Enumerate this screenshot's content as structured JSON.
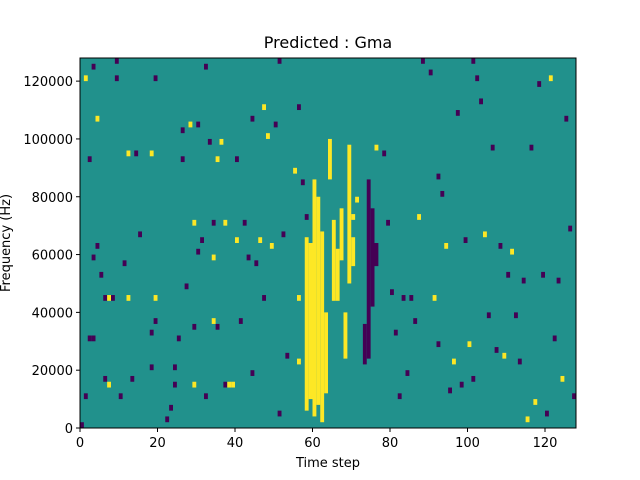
{
  "chart_data": {
    "type": "heatmap",
    "title": "Predicted : Gma",
    "xlabel": "Time step",
    "ylabel": "Frequency (Hz)",
    "xlim": [
      0,
      128
    ],
    "ylim": [
      0,
      128000
    ],
    "x_ticks": [
      0,
      20,
      40,
      60,
      80,
      100,
      120
    ],
    "y_ticks": [
      0,
      20000,
      40000,
      60000,
      80000,
      100000,
      120000
    ],
    "grid": false,
    "legend": "none",
    "colors": {
      "background": "#21918c",
      "high": "#fde725",
      "low": "#440154"
    },
    "band_hz": 2000,
    "events": [
      {
        "t": 0,
        "f": 0,
        "level": "low"
      },
      {
        "t": 1,
        "f": 10000,
        "level": "low"
      },
      {
        "t": 2,
        "f": 30000,
        "level": "low"
      },
      {
        "t": 3,
        "f": 30000,
        "level": "low"
      },
      {
        "t": 1,
        "f": 120000,
        "level": "high"
      },
      {
        "t": 3,
        "f": 124000,
        "level": "low"
      },
      {
        "t": 4,
        "f": 106000,
        "level": "high"
      },
      {
        "t": 2,
        "f": 92000,
        "level": "low"
      },
      {
        "t": 3,
        "f": 58000,
        "level": "low"
      },
      {
        "t": 4,
        "f": 62000,
        "level": "low"
      },
      {
        "t": 5,
        "f": 52000,
        "level": "low"
      },
      {
        "t": 6,
        "f": 44000,
        "level": "low"
      },
      {
        "t": 6,
        "f": 16000,
        "level": "low"
      },
      {
        "t": 7,
        "f": 14000,
        "level": "high"
      },
      {
        "t": 7,
        "f": 44000,
        "level": "high"
      },
      {
        "t": 8,
        "f": 44000,
        "level": "low"
      },
      {
        "t": 9,
        "f": 120000,
        "level": "low"
      },
      {
        "t": 9,
        "f": 126000,
        "level": "low"
      },
      {
        "t": 10,
        "f": 10000,
        "level": "low"
      },
      {
        "t": 11,
        "f": 56000,
        "level": "low"
      },
      {
        "t": 12,
        "f": 44000,
        "level": "high"
      },
      {
        "t": 12,
        "f": 94000,
        "level": "high"
      },
      {
        "t": 13,
        "f": 16000,
        "level": "low"
      },
      {
        "t": 14,
        "f": 94000,
        "level": "low"
      },
      {
        "t": 15,
        "f": 66000,
        "level": "low"
      },
      {
        "t": 18,
        "f": 20000,
        "level": "low"
      },
      {
        "t": 18,
        "f": 32000,
        "level": "low"
      },
      {
        "t": 18,
        "f": 94000,
        "level": "high"
      },
      {
        "t": 19,
        "f": 120000,
        "level": "low"
      },
      {
        "t": 19,
        "f": 36000,
        "level": "low"
      },
      {
        "t": 19,
        "f": 44000,
        "level": "high"
      },
      {
        "t": 22,
        "f": 2000,
        "level": "low"
      },
      {
        "t": 23,
        "f": 6000,
        "level": "low"
      },
      {
        "t": 24,
        "f": 20000,
        "level": "low"
      },
      {
        "t": 24,
        "f": 14000,
        "level": "low"
      },
      {
        "t": 25,
        "f": 30000,
        "level": "low"
      },
      {
        "t": 26,
        "f": 92000,
        "level": "low"
      },
      {
        "t": 26,
        "f": 102000,
        "level": "low"
      },
      {
        "t": 27,
        "f": 48000,
        "level": "low"
      },
      {
        "t": 28,
        "f": 104000,
        "level": "high"
      },
      {
        "t": 29,
        "f": 70000,
        "level": "high"
      },
      {
        "t": 29,
        "f": 34000,
        "level": "low"
      },
      {
        "t": 29,
        "f": 14000,
        "level": "high"
      },
      {
        "t": 30,
        "f": 60000,
        "level": "low"
      },
      {
        "t": 30,
        "f": 104000,
        "level": "low"
      },
      {
        "t": 31,
        "f": 64000,
        "level": "low"
      },
      {
        "t": 32,
        "f": 10000,
        "level": "low"
      },
      {
        "t": 32,
        "f": 124000,
        "level": "low"
      },
      {
        "t": 33,
        "f": 98000,
        "level": "low"
      },
      {
        "t": 34,
        "f": 70000,
        "level": "low"
      },
      {
        "t": 34,
        "f": 58000,
        "level": "high"
      },
      {
        "t": 34,
        "f": 36000,
        "level": "high"
      },
      {
        "t": 35,
        "f": 34000,
        "level": "low"
      },
      {
        "t": 35,
        "f": 92000,
        "level": "high"
      },
      {
        "t": 36,
        "f": 98000,
        "level": "high"
      },
      {
        "t": 37,
        "f": 14000,
        "level": "low"
      },
      {
        "t": 38,
        "f": 14000,
        "level": "high"
      },
      {
        "t": 39,
        "f": 14000,
        "level": "high"
      },
      {
        "t": 37,
        "f": 70000,
        "level": "high"
      },
      {
        "t": 40,
        "f": 64000,
        "level": "high"
      },
      {
        "t": 40,
        "f": 92000,
        "level": "low"
      },
      {
        "t": 41,
        "f": 36000,
        "level": "low"
      },
      {
        "t": 42,
        "f": 70000,
        "level": "low"
      },
      {
        "t": 43,
        "f": 58000,
        "level": "low"
      },
      {
        "t": 44,
        "f": 18000,
        "level": "low"
      },
      {
        "t": 44,
        "f": 106000,
        "level": "low"
      },
      {
        "t": 45,
        "f": 56000,
        "level": "low"
      },
      {
        "t": 46,
        "f": 64000,
        "level": "high"
      },
      {
        "t": 47,
        "f": 44000,
        "level": "low"
      },
      {
        "t": 47,
        "f": 110000,
        "level": "high"
      },
      {
        "t": 48,
        "f": 100000,
        "level": "high"
      },
      {
        "t": 49,
        "f": 62000,
        "level": "high"
      },
      {
        "t": 50,
        "f": 104000,
        "level": "low"
      },
      {
        "t": 51,
        "f": 126000,
        "level": "low"
      },
      {
        "t": 51,
        "f": 4000,
        "level": "low"
      },
      {
        "t": 52,
        "f": 66000,
        "level": "low"
      },
      {
        "t": 53,
        "f": 24000,
        "level": "low"
      },
      {
        "t": 55,
        "f": 88000,
        "level": "high"
      },
      {
        "t": 56,
        "f": 110000,
        "level": "low"
      },
      {
        "t": 56,
        "f": 44000,
        "level": "high"
      },
      {
        "t": 56,
        "f": 22000,
        "level": "high"
      },
      {
        "t": 57,
        "f": 84000,
        "level": "low"
      },
      {
        "t": 58,
        "f": 72000,
        "level": "low"
      },
      {
        "t": 70,
        "f": 72000,
        "level": "high"
      },
      {
        "t": 71,
        "f": 78000,
        "level": "high"
      },
      {
        "t": 76,
        "f": 96000,
        "level": "high"
      },
      {
        "t": 78,
        "f": 94000,
        "level": "low"
      },
      {
        "t": 79,
        "f": 70000,
        "level": "low"
      },
      {
        "t": 80,
        "f": 46000,
        "level": "low"
      },
      {
        "t": 81,
        "f": 32000,
        "level": "low"
      },
      {
        "t": 82,
        "f": 10000,
        "level": "low"
      },
      {
        "t": 83,
        "f": 44000,
        "level": "low"
      },
      {
        "t": 84,
        "f": 18000,
        "level": "low"
      },
      {
        "t": 85,
        "f": 44000,
        "level": "low"
      },
      {
        "t": 86,
        "f": 36000,
        "level": "low"
      },
      {
        "t": 87,
        "f": 72000,
        "level": "high"
      },
      {
        "t": 88,
        "f": 126000,
        "level": "low"
      },
      {
        "t": 90,
        "f": 122000,
        "level": "low"
      },
      {
        "t": 91,
        "f": 44000,
        "level": "high"
      },
      {
        "t": 92,
        "f": 28000,
        "level": "low"
      },
      {
        "t": 92,
        "f": 86000,
        "level": "low"
      },
      {
        "t": 93,
        "f": 80000,
        "level": "low"
      },
      {
        "t": 94,
        "f": 62000,
        "level": "high"
      },
      {
        "t": 95,
        "f": 12000,
        "level": "low"
      },
      {
        "t": 96,
        "f": 22000,
        "level": "high"
      },
      {
        "t": 97,
        "f": 108000,
        "level": "low"
      },
      {
        "t": 98,
        "f": 14000,
        "level": "low"
      },
      {
        "t": 99,
        "f": 64000,
        "level": "low"
      },
      {
        "t": 100,
        "f": 28000,
        "level": "high"
      },
      {
        "t": 101,
        "f": 16000,
        "level": "low"
      },
      {
        "t": 101,
        "f": 126000,
        "level": "low"
      },
      {
        "t": 102,
        "f": 120000,
        "level": "low"
      },
      {
        "t": 103,
        "f": 112000,
        "level": "low"
      },
      {
        "t": 104,
        "f": 66000,
        "level": "high"
      },
      {
        "t": 105,
        "f": 38000,
        "level": "low"
      },
      {
        "t": 106,
        "f": 96000,
        "level": "low"
      },
      {
        "t": 107,
        "f": 26000,
        "level": "low"
      },
      {
        "t": 108,
        "f": 62000,
        "level": "low"
      },
      {
        "t": 109,
        "f": 24000,
        "level": "high"
      },
      {
        "t": 110,
        "f": 52000,
        "level": "low"
      },
      {
        "t": 111,
        "f": 60000,
        "level": "high"
      },
      {
        "t": 112,
        "f": 38000,
        "level": "low"
      },
      {
        "t": 113,
        "f": 22000,
        "level": "low"
      },
      {
        "t": 114,
        "f": 50000,
        "level": "low"
      },
      {
        "t": 115,
        "f": 2000,
        "level": "high"
      },
      {
        "t": 116,
        "f": 96000,
        "level": "low"
      },
      {
        "t": 117,
        "f": 8000,
        "level": "high"
      },
      {
        "t": 118,
        "f": 118000,
        "level": "low"
      },
      {
        "t": 119,
        "f": 52000,
        "level": "low"
      },
      {
        "t": 120,
        "f": 4000,
        "level": "low"
      },
      {
        "t": 121,
        "f": 120000,
        "level": "high"
      },
      {
        "t": 122,
        "f": 30000,
        "level": "low"
      },
      {
        "t": 123,
        "f": 50000,
        "level": "low"
      },
      {
        "t": 124,
        "f": 16000,
        "level": "high"
      },
      {
        "t": 125,
        "f": 106000,
        "level": "low"
      },
      {
        "t": 126,
        "f": 68000,
        "level": "low"
      },
      {
        "t": 127,
        "f": 10000,
        "level": "low"
      }
    ],
    "streaks": [
      {
        "t": 58,
        "f_start": 6000,
        "f_end": 66000,
        "level": "high"
      },
      {
        "t": 59,
        "f_start": 10000,
        "f_end": 64000,
        "level": "high"
      },
      {
        "t": 60,
        "f_start": 4000,
        "f_end": 86000,
        "level": "high"
      },
      {
        "t": 61,
        "f_start": 8000,
        "f_end": 80000,
        "level": "high"
      },
      {
        "t": 62,
        "f_start": 2000,
        "f_end": 68000,
        "level": "high"
      },
      {
        "t": 63,
        "f_start": 12000,
        "f_end": 40000,
        "level": "high"
      },
      {
        "t": 64,
        "f_start": 86000,
        "f_end": 100000,
        "level": "high"
      },
      {
        "t": 65,
        "f_start": 44000,
        "f_end": 72000,
        "level": "high"
      },
      {
        "t": 66,
        "f_start": 44000,
        "f_end": 62000,
        "level": "high"
      },
      {
        "t": 67,
        "f_start": 58000,
        "f_end": 76000,
        "level": "high"
      },
      {
        "t": 68,
        "f_start": 24000,
        "f_end": 40000,
        "level": "high"
      },
      {
        "t": 69,
        "f_start": 50000,
        "f_end": 98000,
        "level": "high"
      },
      {
        "t": 70,
        "f_start": 56000,
        "f_end": 66000,
        "level": "high"
      },
      {
        "t": 73,
        "f_start": 22000,
        "f_end": 36000,
        "level": "low"
      },
      {
        "t": 74,
        "f_start": 24000,
        "f_end": 86000,
        "level": "low"
      },
      {
        "t": 75,
        "f_start": 42000,
        "f_end": 76000,
        "level": "low"
      },
      {
        "t": 76,
        "f_start": 56000,
        "f_end": 64000,
        "level": "low"
      }
    ]
  }
}
